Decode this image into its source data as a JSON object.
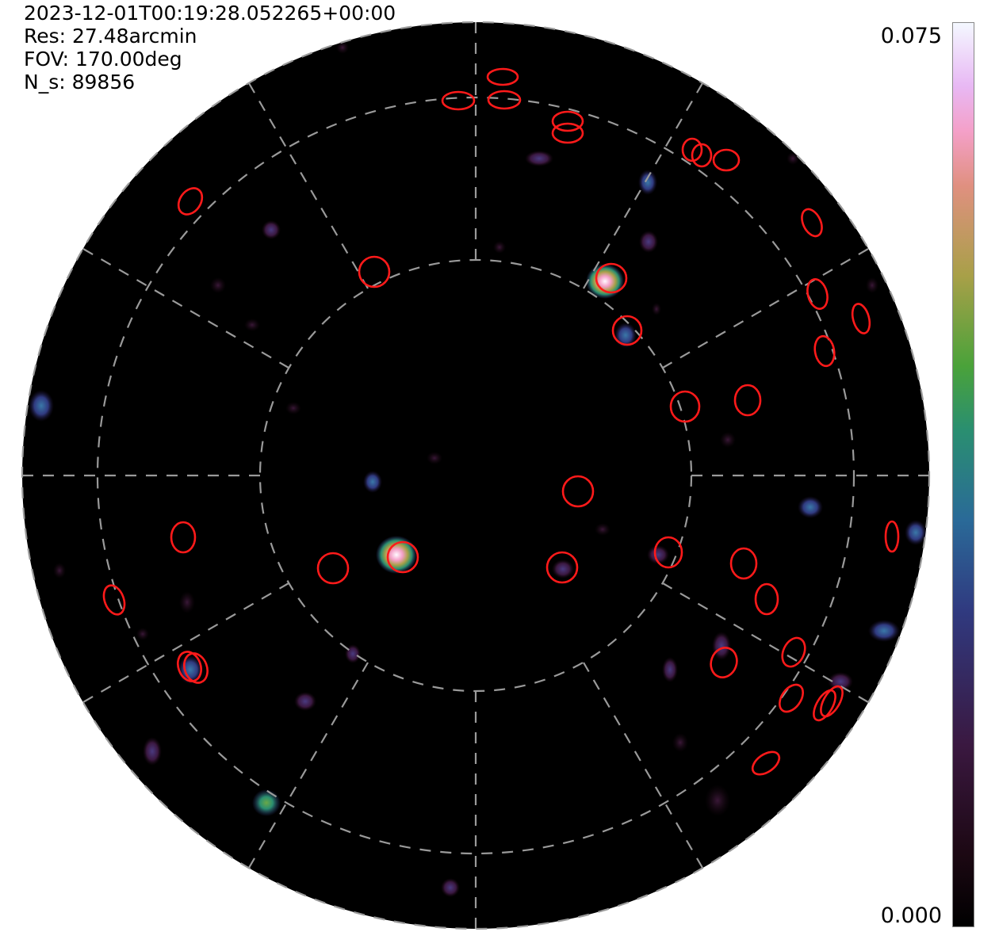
{
  "info": {
    "timestamp": "2023-12-01T00:19:28.052265+00:00",
    "resolution": "Res: 27.48arcmin",
    "fov": "FOV: 170.00deg",
    "n_s": "N_s: 89856"
  },
  "colorbar": {
    "max_label": "0.075",
    "min_label": "0.000",
    "colors": [
      "#000000",
      "#3a1840",
      "#303a80",
      "#2a8f70",
      "#a8a048",
      "#e09080",
      "#f4a0c8",
      "#f4f8ff"
    ]
  },
  "colors": {
    "sky_background": "#000000",
    "grid_line": "#9a9a9a",
    "source_marker": "#ff1a1a"
  }
}
